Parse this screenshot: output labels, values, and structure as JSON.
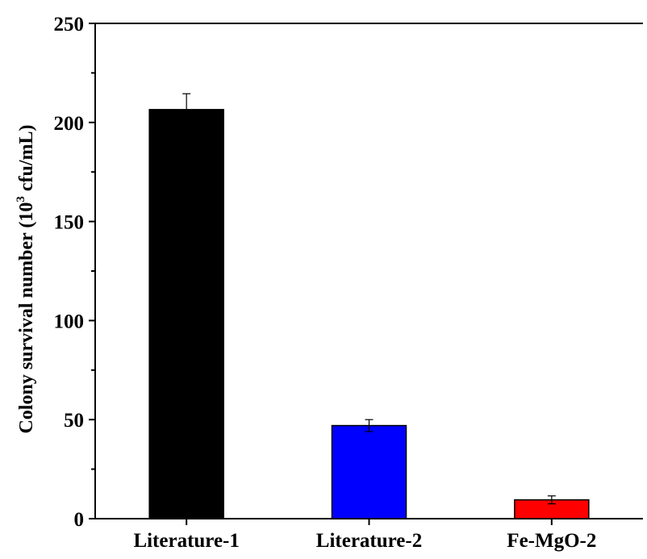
{
  "chart_data": {
    "type": "bar",
    "categories": [
      "Literature-1",
      "Literature-2",
      "Fe-MgO-2"
    ],
    "values": [
      206.5,
      47,
      9.5
    ],
    "errors": [
      8,
      3,
      2
    ],
    "colors": [
      "#000000",
      "#0000ff",
      "#ff0000"
    ],
    "ylabel": "Colony survival number (10",
    "ylabel_sup": "3",
    "ylabel_tail": " cfu/mL)",
    "ylim": [
      0,
      250
    ],
    "yticks": [
      0,
      50,
      100,
      150,
      200,
      250
    ],
    "grid": false
  }
}
